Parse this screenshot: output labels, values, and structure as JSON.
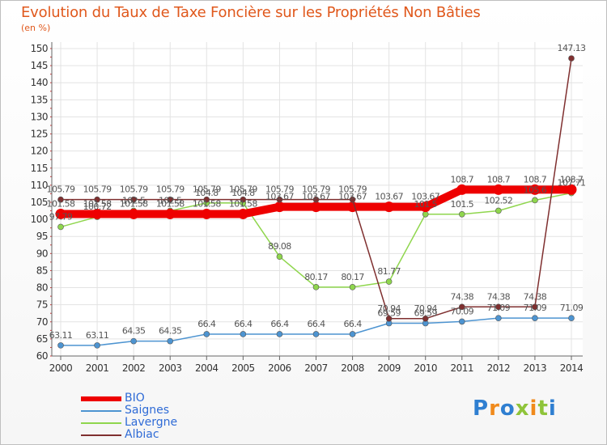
{
  "title": "Evolution du Taux de Taxe Foncière sur les Propriétés Non Bâties",
  "unit": "(en %)",
  "logo": "Proxiti",
  "chart_data": {
    "type": "line",
    "title": "Evolution du Taux de Taxe Foncière sur les Propriétés Non Bâties",
    "ylabel": "(en %)",
    "xlabel": "",
    "ylim": [
      60,
      150
    ],
    "yticks": [
      60,
      65,
      70,
      75,
      80,
      85,
      90,
      95,
      100,
      105,
      110,
      115,
      120,
      125,
      130,
      135,
      140,
      145,
      150
    ],
    "grid": true,
    "categories": [
      "2000",
      "2001",
      "2002",
      "2003",
      "2004",
      "2005",
      "2006",
      "2007",
      "2008",
      "2009",
      "2010",
      "2011",
      "2012",
      "2013",
      "2014"
    ],
    "series": [
      {
        "name": "BIO",
        "color": "#ee0000",
        "values": [
          101.58,
          101.58,
          101.58,
          101.58,
          101.58,
          101.58,
          103.67,
          103.67,
          103.67,
          103.67,
          103.67,
          108.7,
          108.7,
          108.7,
          108.7
        ],
        "labels": [
          "101.58",
          "101.58",
          "101.58",
          "101.58",
          "101.58",
          "101.58",
          "103.67",
          "103.67",
          "103.67",
          "103.67",
          "103.67",
          "108.7",
          "108.7",
          "108.7",
          "108.7"
        ]
      },
      {
        "name": "Saignes",
        "color": "#4d94d1",
        "values": [
          63.11,
          63.11,
          64.35,
          64.35,
          66.4,
          66.4,
          66.4,
          66.4,
          66.4,
          69.59,
          69.59,
          70.09,
          71.09,
          71.09,
          71.09
        ],
        "labels": [
          "63.11",
          "63.11",
          "64.35",
          "64.35",
          "66.4",
          "66.4",
          "66.4",
          "66.4",
          "66.4",
          "69.59",
          "69.59",
          "70.09",
          "71.09",
          "71.09",
          "71.09"
        ]
      },
      {
        "name": "Lavergne",
        "color": "#8fd64d",
        "values": [
          97.79,
          100.72,
          102.5,
          102.5,
          104.8,
          104.8,
          89.08,
          80.17,
          80.17,
          81.77,
          101.5,
          101.5,
          102.52,
          105.6,
          107.71
        ],
        "labels": [
          "97.79",
          "100.72",
          "102.5",
          "102.5",
          "104.8",
          "104.8",
          "89.08",
          "80.17",
          "80.17",
          "81.77",
          "101.5",
          "101.5",
          "102.52",
          "105.6",
          "107.71"
        ]
      },
      {
        "name": "Albiac",
        "color": "#7f2f2f",
        "values": [
          105.79,
          105.79,
          105.79,
          105.79,
          105.79,
          105.79,
          105.79,
          105.79,
          105.79,
          70.94,
          70.94,
          74.38,
          74.38,
          74.38,
          147.13
        ],
        "labels": [
          "105.79",
          "105.79",
          "105.79",
          "105.79",
          "105.79",
          "105.79",
          "105.79",
          "105.79",
          "105.79",
          "70.94",
          "70.94",
          "74.38",
          "74.38",
          "74.38",
          "147.13"
        ]
      }
    ]
  }
}
